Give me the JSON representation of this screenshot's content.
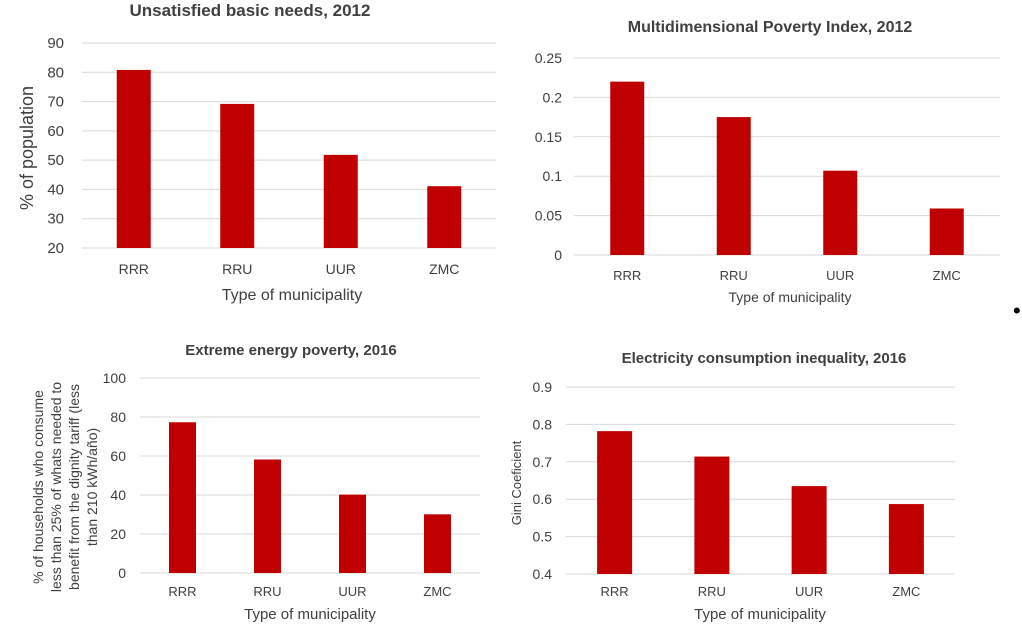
{
  "colors": {
    "bar": "#c00000",
    "grid": "#d9d9d9",
    "text": "#404040"
  },
  "stray_mark": "•",
  "chart_data": [
    {
      "type": "bar",
      "title": "Unsatisfied basic needs, 2012",
      "xlabel": "Type of municipality",
      "ylabel": "% of population",
      "categories": [
        "RRR",
        "RRU",
        "UUR",
        "ZMC"
      ],
      "values": [
        80.8,
        69.2,
        51.8,
        41.1
      ],
      "ylim": [
        20,
        90
      ],
      "yticks": [
        "20",
        "30",
        "40",
        "50",
        "60",
        "70",
        "80",
        "90"
      ],
      "grid": true
    },
    {
      "type": "bar",
      "title": "Multidimensional Poverty Index, 2012",
      "xlabel": "Type of municipality",
      "ylabel": "",
      "categories": [
        "RRR",
        "RRU",
        "UUR",
        "ZMC"
      ],
      "values": [
        0.22,
        0.175,
        0.107,
        0.059
      ],
      "ylim": [
        0,
        0.25
      ],
      "yticks": [
        "0",
        "0.05",
        "0.1",
        "0.15",
        "0.2",
        "0.25"
      ],
      "grid": true
    },
    {
      "type": "bar",
      "title": "Extreme energy poverty, 2016",
      "xlabel": "Type of municipality",
      "ylabel_lines": [
        "% of households who consume",
        "less than 25% of whats needed to",
        "benefit from the dignity tariff (less",
        "than 210 kWh/año)"
      ],
      "categories": [
        "RRR",
        "RRU",
        "UUR",
        "ZMC"
      ],
      "values": [
        77.3,
        58.2,
        40.2,
        30.1
      ],
      "ylim": [
        0,
        100
      ],
      "yticks": [
        "0",
        "20",
        "40",
        "60",
        "80",
        "100"
      ],
      "grid": true
    },
    {
      "type": "bar",
      "title": "Electricity consumption inequality, 2016",
      "xlabel": "Type of municipality",
      "ylabel": "Gini Coeficient",
      "categories": [
        "RRR",
        "RRU",
        "UUR",
        "ZMC"
      ],
      "values": [
        0.782,
        0.714,
        0.635,
        0.587
      ],
      "ylim": [
        0.4,
        0.9
      ],
      "yticks": [
        "0.4",
        "0.5",
        "0.6",
        "0.7",
        "0.8",
        "0.9"
      ],
      "grid": true
    }
  ]
}
